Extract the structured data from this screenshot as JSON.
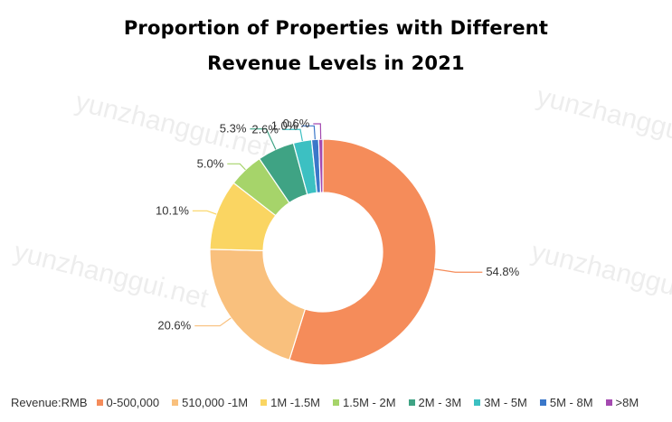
{
  "title_line1": "Proportion of Properties with Different",
  "title_line2": "Revenue Levels in 2021",
  "watermark": "yunzhanggui.net",
  "legend_title": "Revenue:RMB",
  "chart_data": {
    "type": "pie",
    "donut": true,
    "title": "Proportion of Properties with Different Revenue Levels in 2021",
    "categories": [
      "0-500,000",
      "510,000 -1M",
      "1M -1.5M",
      "1.5M - 2M",
      "2M - 3M",
      "3M - 5M",
      "5M - 8M",
      ">8M"
    ],
    "values": [
      54.8,
      20.6,
      10.1,
      5.0,
      5.3,
      2.6,
      1.0,
      0.6
    ],
    "labels": [
      "54.8%",
      "20.6%",
      "10.1%",
      "5.0%",
      "5.3%",
      "2.6%",
      "1.0%",
      "0.6%"
    ],
    "colors": [
      "#F58C5A",
      "#F9C07D",
      "#FAD562",
      "#A6D46A",
      "#3FA384",
      "#3CC0C2",
      "#3A77C9",
      "#A44AB0"
    ],
    "legend_position": "bottom"
  }
}
